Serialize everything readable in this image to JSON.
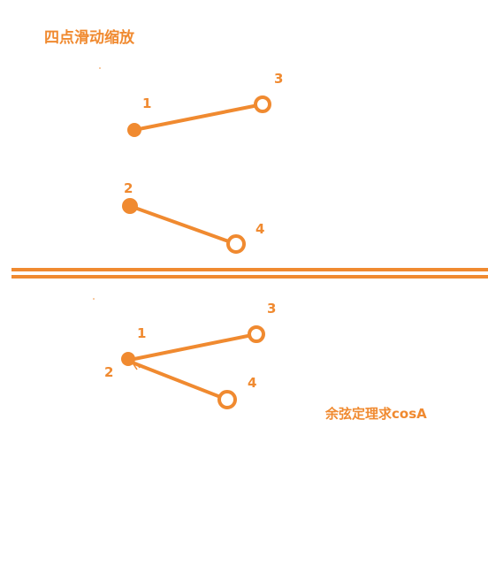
{
  "title": "四点滑动缩放",
  "caption": "余弦定理求cosA",
  "colors": {
    "accent": "#f08a30"
  },
  "top_points": {
    "p1": "1",
    "p2": "2",
    "p3": "3",
    "p4": "4"
  },
  "bottom_points": {
    "p1": "1",
    "p2": "2",
    "p3": "3",
    "p4": "4"
  }
}
